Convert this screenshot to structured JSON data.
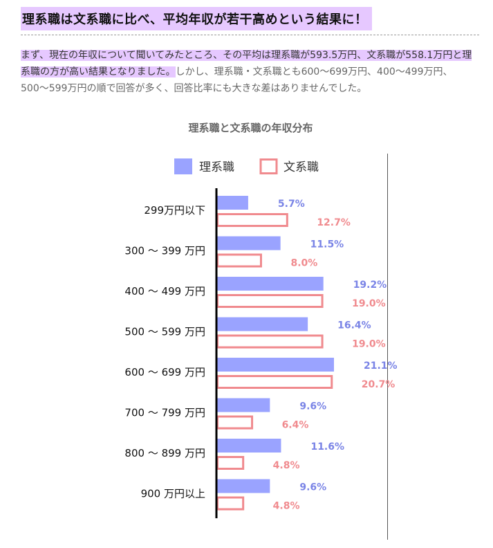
{
  "heading": "理系職は文系職に比べ、平均年収が若干高めという結果に！",
  "paragraph": {
    "highlight": "まず、現在の年収について聞いてみたところ、その平均は理系職が593.5万円、文系職が558.1万円と理系職の方が高い結果となりました。",
    "rest": "しかし、理系職・文系職とも600〜699万円、400〜499万円、500〜599万円の順で回答が多く、回答比率にも大きな差はありませんでした。"
  },
  "chart_data": {
    "type": "bar",
    "orientation": "horizontal",
    "title": "理系職と文系職の年収分布",
    "categories": [
      "299万円以下",
      "300 〜 399 万円",
      "400 〜 499 万円",
      "500 〜 599 万円",
      "600 〜 699 万円",
      "700 〜 799 万円",
      "800 〜 899 万円",
      "900 万円以上"
    ],
    "series": [
      {
        "name": "理系職",
        "values": [
          5.7,
          11.5,
          19.2,
          16.4,
          21.1,
          9.6,
          11.6,
          9.6
        ],
        "labels": [
          "5.7%",
          "11.5%",
          "19.2%",
          "16.4%",
          "21.1%",
          "9.6%",
          "11.6%",
          "9.6%"
        ],
        "color": "#9aa3ff",
        "style": "filled"
      },
      {
        "name": "文系職",
        "values": [
          12.7,
          8.0,
          19.0,
          19.0,
          20.7,
          6.4,
          4.8,
          4.8
        ],
        "labels": [
          "12.7%",
          "8.0%",
          "19.0%",
          "19.0%",
          "20.7%",
          "6.4%",
          "4.8%",
          "4.8%"
        ],
        "color": "#f08a8e",
        "style": "outline"
      }
    ],
    "legend_position": "top",
    "label_colors": {
      "rikei": "#7a84e6",
      "bunkei": "#f08a8e"
    }
  }
}
